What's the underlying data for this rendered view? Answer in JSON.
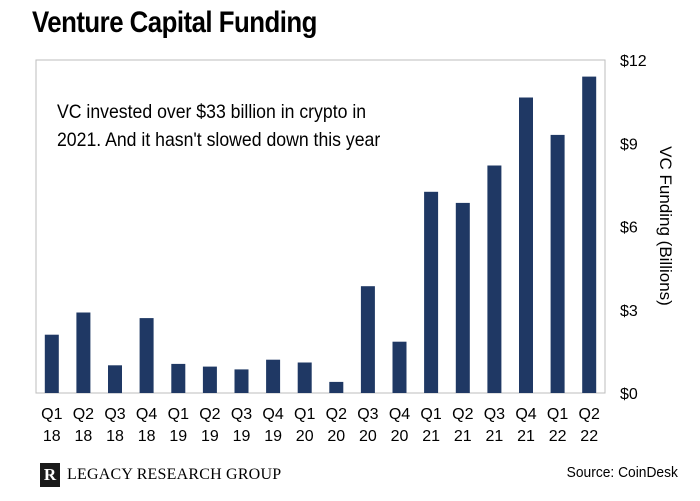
{
  "header": {
    "title": "Venture Capital Funding"
  },
  "footer": {
    "brand": "LEGACY RESEARCH GROUP",
    "logo_letter": "R",
    "source": "Source: CoinDesk"
  },
  "colors": {
    "bar": "#1f3864",
    "frame": "#bdbdbd"
  },
  "chart_data": {
    "type": "bar",
    "title": "Venture Capital Funding",
    "annotation": [
      "VC invested over $33 billion in crypto in",
      "2021. And it hasn't slowed down this year"
    ],
    "ylabel": "VC Funding (Billions)",
    "yaxis_position": "right",
    "ylim": [
      0,
      12
    ],
    "yticks": [
      0,
      3,
      6,
      9,
      12
    ],
    "ytick_labels": [
      "$0",
      "$3",
      "$6",
      "$9",
      "$12"
    ],
    "grid": false,
    "categories": [
      [
        "Q1",
        "18"
      ],
      [
        "Q2",
        "18"
      ],
      [
        "Q3",
        "18"
      ],
      [
        "Q4",
        "18"
      ],
      [
        "Q1",
        "19"
      ],
      [
        "Q2",
        "19"
      ],
      [
        "Q3",
        "19"
      ],
      [
        "Q4",
        "19"
      ],
      [
        "Q1",
        "20"
      ],
      [
        "Q2",
        "20"
      ],
      [
        "Q3",
        "20"
      ],
      [
        "Q4",
        "20"
      ],
      [
        "Q1",
        "21"
      ],
      [
        "Q2",
        "21"
      ],
      [
        "Q3",
        "21"
      ],
      [
        "Q4",
        "21"
      ],
      [
        "Q1",
        "22"
      ],
      [
        "Q2",
        "22"
      ]
    ],
    "values": [
      2.1,
      2.9,
      1.0,
      2.7,
      1.05,
      0.95,
      0.85,
      1.2,
      1.1,
      0.4,
      3.85,
      1.85,
      7.25,
      6.85,
      8.2,
      10.65,
      9.3,
      11.4
    ]
  }
}
